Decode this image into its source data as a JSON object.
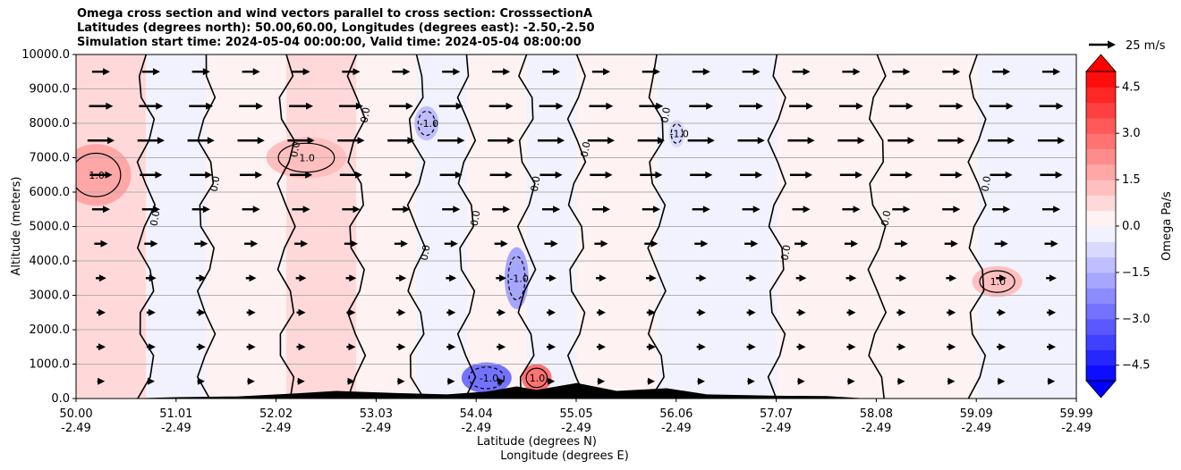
{
  "title_lines": [
    "Omega cross section and wind vectors parallel to cross section: CrosssectionA",
    "Latitudes (degrees north): 50.00,60.00, Longitudes (degrees east): -2.50,-2.50",
    "Simulation start time: 2024-05-04 00:00:00, Valid time: 2024-05-04 08:00:00"
  ],
  "chart_data": {
    "type": "heatmap",
    "variable": "Omega",
    "ylabel": "Altitude (meters)",
    "xlabel_lines": [
      "Latitude (degrees N)",
      "Longitude (degrees E)"
    ],
    "ylim": [
      0,
      10000
    ],
    "xlim": [
      50.0,
      59.99
    ],
    "yticks": [
      "0.0",
      "1000.0",
      "2000.0",
      "3000.0",
      "4000.0",
      "5000.0",
      "6000.0",
      "7000.0",
      "8000.0",
      "9000.0",
      "10000.0"
    ],
    "xticks_lat": [
      "50.00",
      "51.01",
      "52.02",
      "53.03",
      "54.04",
      "55.05",
      "56.06",
      "57.07",
      "58.08",
      "59.09",
      "59.99"
    ],
    "xticks_lon": [
      "-2.49",
      "-2.49",
      "-2.49",
      "-2.49",
      "-2.49",
      "-2.49",
      "-2.49",
      "-2.49",
      "-2.49",
      "-2.49",
      "-2.49"
    ],
    "horizontal_grid": true,
    "colorbar": {
      "label": "Omega Pa/s",
      "range": [
        -5.0,
        5.0
      ],
      "ticks": [
        "4.5",
        "3.0",
        "1.5",
        "0.0",
        "−1.5",
        "−3.0",
        "−4.5"
      ],
      "tick_values": [
        4.5,
        3.0,
        1.5,
        0.0,
        -1.5,
        -3.0,
        -4.5
      ],
      "levels": 20,
      "colormap": "bwr",
      "extend": "both",
      "low_color": "#0000ff",
      "high_color": "#ff0000"
    },
    "quiver_key": {
      "label": "25 m/s",
      "speed": 25
    },
    "contour_labels": [
      "0.0",
      "1.0",
      "-1.0"
    ],
    "terrain_color": "#000000",
    "terrain_profile": [
      {
        "lat": 50.5,
        "height": 0
      },
      {
        "lat": 51.0,
        "height": 40
      },
      {
        "lat": 51.6,
        "height": 60
      },
      {
        "lat": 52.2,
        "height": 150
      },
      {
        "lat": 52.6,
        "height": 220
      },
      {
        "lat": 53.2,
        "height": 160
      },
      {
        "lat": 53.7,
        "height": 120
      },
      {
        "lat": 54.1,
        "height": 200
      },
      {
        "lat": 54.4,
        "height": 350
      },
      {
        "lat": 54.6,
        "height": 250
      },
      {
        "lat": 55.0,
        "height": 450
      },
      {
        "lat": 55.4,
        "height": 220
      },
      {
        "lat": 55.9,
        "height": 300
      },
      {
        "lat": 56.3,
        "height": 120
      },
      {
        "lat": 57.0,
        "height": 80
      },
      {
        "lat": 57.5,
        "height": 70
      },
      {
        "lat": 57.9,
        "height": 0
      }
    ],
    "omega_columns": [
      {
        "lat_start": 50.0,
        "lat_end": 50.7,
        "value": 0.5
      },
      {
        "lat_start": 50.7,
        "lat_end": 51.3,
        "value": -0.3
      },
      {
        "lat_start": 51.3,
        "lat_end": 52.1,
        "value": 0.4
      },
      {
        "lat_start": 52.1,
        "lat_end": 52.8,
        "value": 0.5
      },
      {
        "lat_start": 52.8,
        "lat_end": 53.4,
        "value": 0.3
      },
      {
        "lat_start": 53.4,
        "lat_end": 53.9,
        "value": -0.4
      },
      {
        "lat_start": 53.9,
        "lat_end": 54.5,
        "value": 0.4
      },
      {
        "lat_start": 54.5,
        "lat_end": 55.0,
        "value": -0.5
      },
      {
        "lat_start": 55.0,
        "lat_end": 55.8,
        "value": 0.3
      },
      {
        "lat_start": 55.8,
        "lat_end": 57.0,
        "value": -0.3
      },
      {
        "lat_start": 57.0,
        "lat_end": 58.0,
        "value": 0.3
      },
      {
        "lat_start": 58.0,
        "lat_end": 59.0,
        "value": 0.4
      },
      {
        "lat_start": 59.0,
        "lat_end": 59.99,
        "value": -0.3
      }
    ],
    "omega_patches": [
      {
        "lat": 50.2,
        "alt": 6500,
        "lat_w": 0.35,
        "alt_h": 1800,
        "value": 1.5
      },
      {
        "lat": 52.3,
        "alt": 7000,
        "lat_w": 0.4,
        "alt_h": 1200,
        "value": 1.2
      },
      {
        "lat": 53.5,
        "alt": 8000,
        "lat_w": 0.12,
        "alt_h": 1000,
        "value": -1.5
      },
      {
        "lat": 54.4,
        "alt": 3500,
        "lat_w": 0.12,
        "alt_h": 1800,
        "value": -2.0
      },
      {
        "lat": 54.1,
        "alt": 600,
        "lat_w": 0.25,
        "alt_h": 900,
        "value": -3.0
      },
      {
        "lat": 54.6,
        "alt": 600,
        "lat_w": 0.15,
        "alt_h": 800,
        "value": 2.5
      },
      {
        "lat": 56.0,
        "alt": 7700,
        "lat_w": 0.08,
        "alt_h": 800,
        "value": -1.0
      },
      {
        "lat": 59.2,
        "alt": 3400,
        "lat_w": 0.25,
        "alt_h": 900,
        "value": 1.0
      }
    ],
    "wind_rows": [
      {
        "alt": 9500,
        "speed_u": 12
      },
      {
        "alt": 8500,
        "speed_u": 16
      },
      {
        "alt": 7500,
        "speed_u": 18
      },
      {
        "alt": 6500,
        "speed_u": 15
      },
      {
        "alt": 5500,
        "speed_u": 12
      },
      {
        "alt": 4500,
        "speed_u": 9
      },
      {
        "alt": 3500,
        "speed_u": 7
      },
      {
        "alt": 2500,
        "speed_u": 6
      },
      {
        "alt": 1500,
        "speed_u": 6
      },
      {
        "alt": 500,
        "speed_u": 5
      }
    ]
  }
}
